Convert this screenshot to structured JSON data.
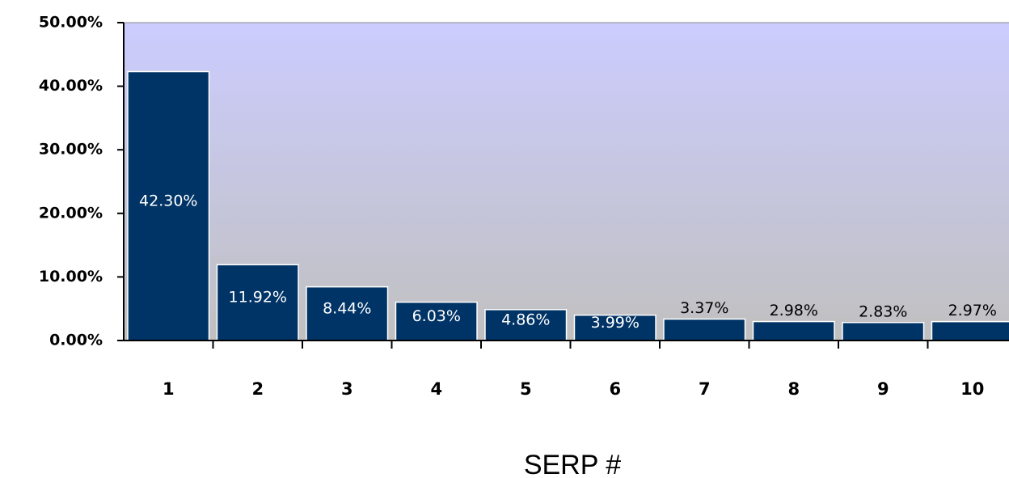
{
  "chart_data": {
    "type": "bar",
    "xlabel": "SERP #",
    "categories": [
      "1",
      "2",
      "3",
      "4",
      "5",
      "6",
      "7",
      "8",
      "9",
      "10"
    ],
    "values": [
      42.3,
      11.92,
      8.44,
      6.03,
      4.86,
      3.99,
      3.37,
      2.98,
      2.83,
      2.97
    ],
    "value_labels": [
      "42.30%",
      "11.92%",
      "8.44%",
      "6.03%",
      "4.86%",
      "3.99%",
      "3.37%",
      "2.98%",
      "2.83%",
      "2.97%"
    ],
    "color": "#003366",
    "ylim": [
      0,
      50
    ],
    "yticks": [
      {
        "value": 0,
        "label": "0.00%"
      },
      {
        "value": 10,
        "label": "10.00%"
      },
      {
        "value": 20,
        "label": "20.00%"
      },
      {
        "value": 30,
        "label": "30.00%"
      },
      {
        "value": 40,
        "label": "40.00%"
      },
      {
        "value": 50,
        "label": "50.00%"
      }
    ]
  }
}
